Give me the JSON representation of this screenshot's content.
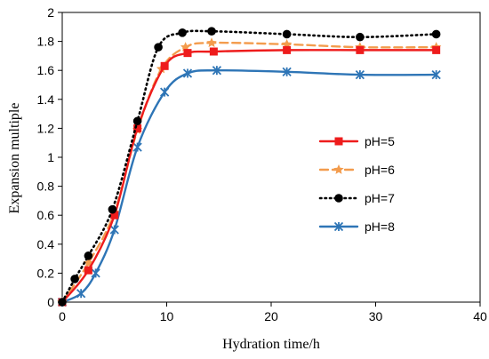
{
  "chart_data": {
    "type": "line",
    "xlabel": "Hydration time/h",
    "ylabel": "Expansion multiple",
    "xlim": [
      0,
      40
    ],
    "ylim": [
      0,
      2
    ],
    "x_ticks": [
      "0",
      "10",
      "20",
      "30",
      "40"
    ],
    "y_ticks": [
      "0",
      "0.2",
      "0.4",
      "0.6",
      "0.8",
      "1",
      "1.2",
      "1.4",
      "1.6",
      "1.8",
      "2"
    ],
    "legend_position": "right",
    "grid": false,
    "series": [
      {
        "name": "pH=5",
        "color": "#ee1c1c",
        "line_style": "solid",
        "marker": "square",
        "x": [
          0,
          2.5,
          5,
          7.2,
          9.8,
          12,
          14.5,
          21.5,
          28.5,
          35.8
        ],
        "y": [
          0,
          0.22,
          0.6,
          1.2,
          1.63,
          1.72,
          1.73,
          1.74,
          1.74,
          1.74
        ]
      },
      {
        "name": "pH=6",
        "color": "#f39c4d",
        "line_style": "dashed",
        "marker": "triangle",
        "x": [
          0,
          2.5,
          5,
          7.2,
          9.5,
          11.8,
          14.3,
          21.5,
          28.5,
          35.8
        ],
        "y": [
          0,
          0.27,
          0.62,
          1.19,
          1.61,
          1.76,
          1.79,
          1.78,
          1.76,
          1.76
        ]
      },
      {
        "name": "pH=7",
        "color": "#000000",
        "line_style": "dotted",
        "marker": "circle",
        "x": [
          0,
          1.2,
          2.5,
          4.8,
          7.2,
          9.2,
          11.5,
          14.3,
          21.5,
          28.5,
          35.8
        ],
        "y": [
          0,
          0.16,
          0.32,
          0.64,
          1.25,
          1.76,
          1.86,
          1.87,
          1.85,
          1.83,
          1.85
        ]
      },
      {
        "name": "pH=8",
        "color": "#2e75b6",
        "line_style": "solid",
        "marker": "star",
        "x": [
          0,
          1.8,
          3.2,
          5,
          7.2,
          9.8,
          12,
          14.8,
          21.5,
          28.5,
          35.8
        ],
        "y": [
          0,
          0.06,
          0.2,
          0.5,
          1.07,
          1.45,
          1.58,
          1.6,
          1.59,
          1.57,
          1.57
        ]
      }
    ]
  }
}
